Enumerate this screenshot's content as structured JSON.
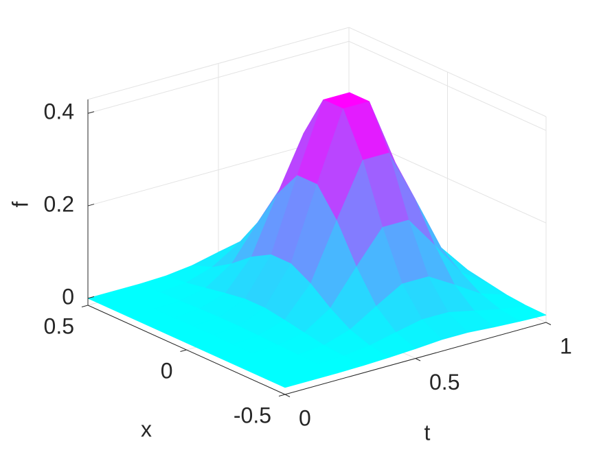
{
  "chart_data": {
    "type": "surface",
    "t_label": "t",
    "x_label": "x",
    "z_label": "f",
    "t": [
      0,
      0.1,
      0.2,
      0.3,
      0.4,
      0.5,
      0.6,
      0.7,
      0.8,
      0.9,
      1
    ],
    "x": [
      -0.5,
      -0.4,
      -0.3,
      -0.2,
      -0.1,
      0,
      0.1,
      0.2,
      0.3,
      0.4,
      0.5
    ],
    "values": [
      [
        0,
        0,
        0,
        0.001,
        0.003,
        0.006,
        0.01,
        0.01,
        0.006,
        0.003,
        0.001
      ],
      [
        0,
        0,
        0,
        0.002,
        0.009,
        0.022,
        0.034,
        0.034,
        0.022,
        0.009,
        0.002
      ],
      [
        0,
        0,
        0.001,
        0.006,
        0.024,
        0.059,
        0.092,
        0.092,
        0.059,
        0.024,
        0.006
      ],
      [
        0,
        0,
        0.002,
        0.014,
        0.051,
        0.125,
        0.195,
        0.195,
        0.125,
        0.051,
        0.014
      ],
      [
        0,
        0,
        0.004,
        0.022,
        0.085,
        0.206,
        0.321,
        0.321,
        0.206,
        0.085,
        0.022
      ],
      [
        0,
        0.001,
        0.005,
        0.029,
        0.109,
        0.265,
        0.413,
        0.413,
        0.265,
        0.109,
        0.029
      ],
      [
        0,
        0.001,
        0.005,
        0.029,
        0.109,
        0.265,
        0.413,
        0.413,
        0.265,
        0.109,
        0.029
      ],
      [
        0,
        0,
        0.004,
        0.022,
        0.085,
        0.206,
        0.321,
        0.321,
        0.206,
        0.085,
        0.022
      ],
      [
        0,
        0,
        0.002,
        0.014,
        0.051,
        0.125,
        0.195,
        0.195,
        0.125,
        0.051,
        0.014
      ],
      [
        0,
        0,
        0.001,
        0.006,
        0.024,
        0.059,
        0.092,
        0.092,
        0.059,
        0.024,
        0.006
      ],
      [
        0,
        0,
        0,
        0.002,
        0.009,
        0.022,
        0.034,
        0.034,
        0.022,
        0.009,
        0.002
      ]
    ],
    "tlim": [
      0,
      1
    ],
    "xlim": [
      -0.5,
      0.5
    ],
    "zlim": [
      -0.015,
      0.43
    ],
    "tticks": [
      0,
      0.5,
      1
    ],
    "xticks": [
      -0.5,
      0,
      0.5
    ],
    "zticks": [
      0,
      0.2,
      0.4
    ],
    "colormap": [
      "#00ffff",
      "#ff00ff"
    ],
    "grid": true
  }
}
